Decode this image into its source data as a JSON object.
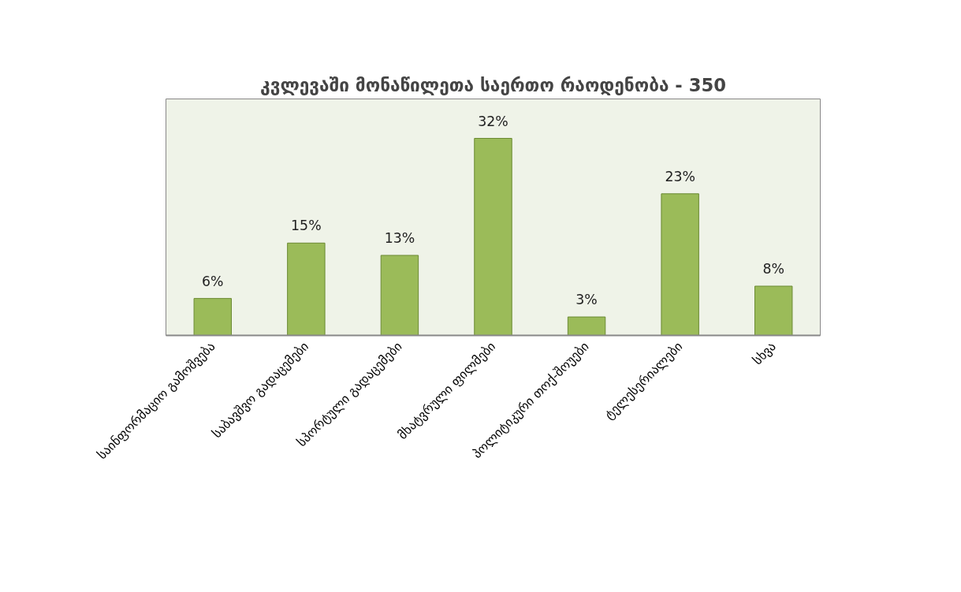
{
  "chart_data": {
    "type": "bar",
    "title": "კვლევაში მონაწილეთა საერთო რაოდენობა - 350",
    "categories": [
      "საინფორმაციო გამოშვება",
      "საბავშვო გადაცემები",
      "სპორტული გადაცემები",
      "მხატვრული ფილმები",
      "პოლიტიკური თოქ-შოუები",
      "ტელესერიალები",
      "სხვა"
    ],
    "values": [
      6,
      15,
      13,
      32,
      3,
      23,
      8
    ],
    "value_labels": [
      "6%",
      "15%",
      "13%",
      "32%",
      "3%",
      "23%",
      "8%"
    ],
    "color": "#9bbb59",
    "grid": false
  }
}
